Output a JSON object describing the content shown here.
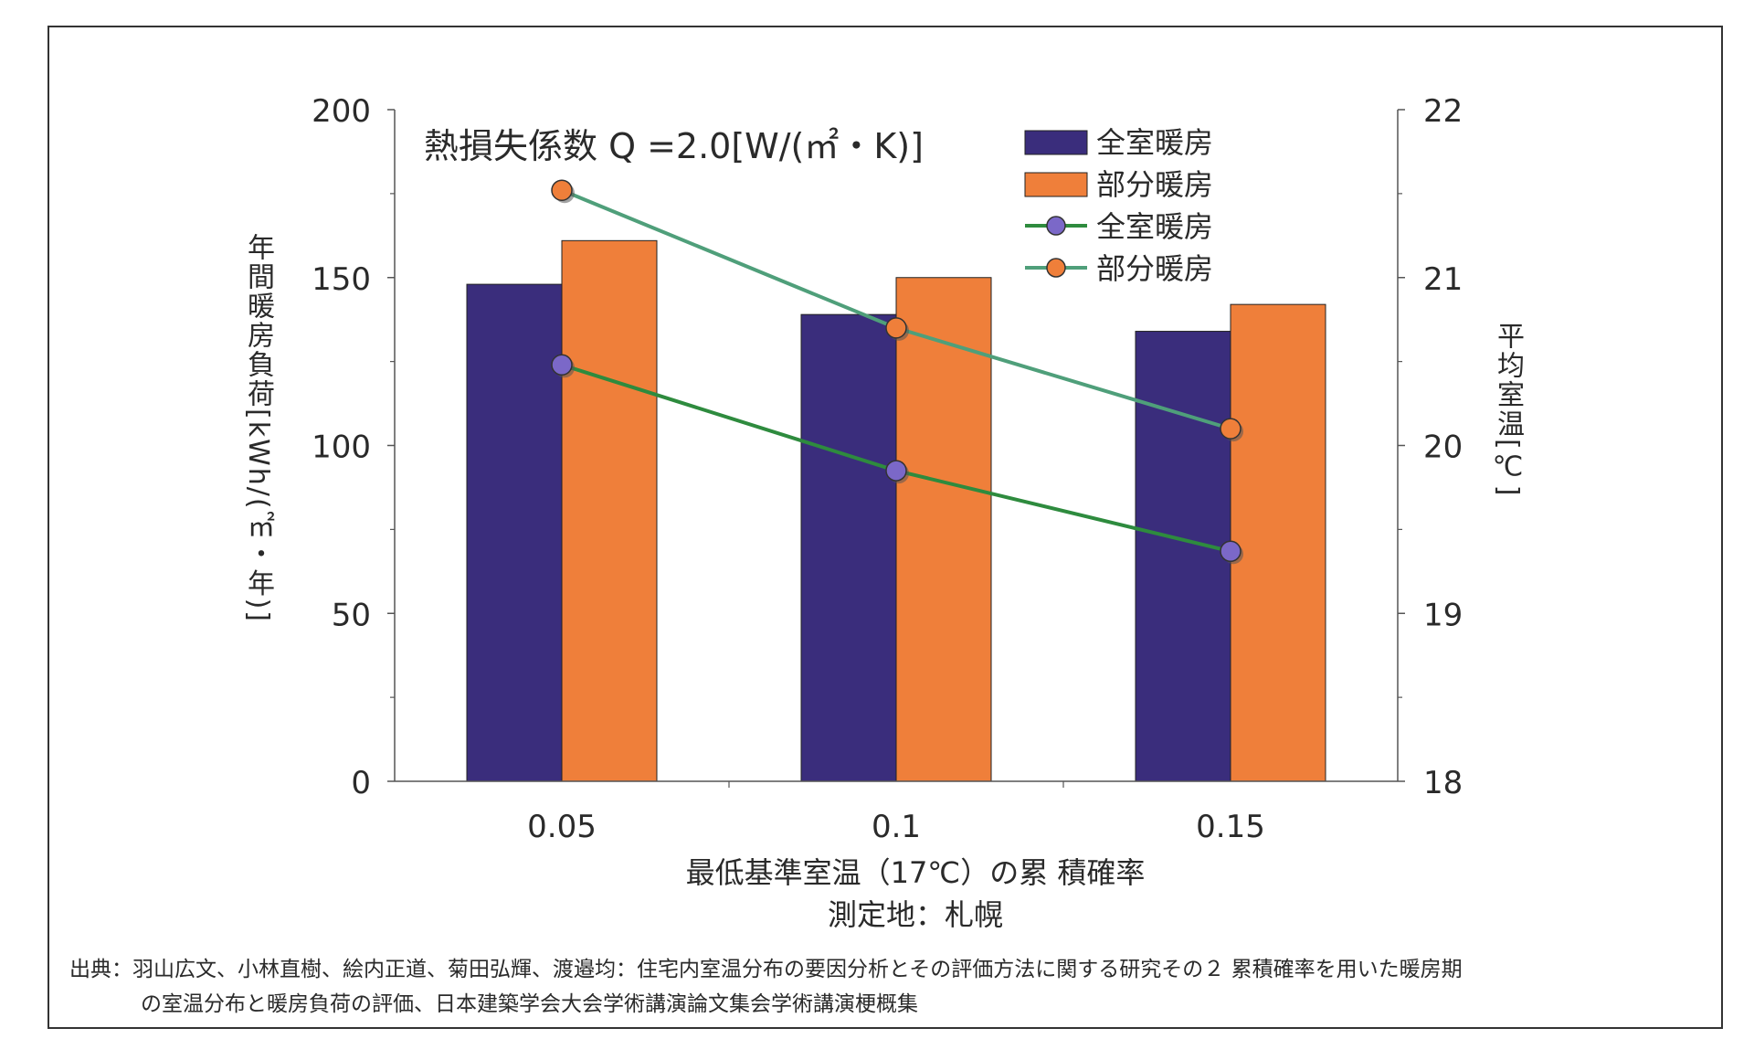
{
  "chart_data": {
    "type": "bar",
    "title": "熱損失係数 Q =2.0[W/(㎡・K)]",
    "categories": [
      "0.05",
      "0.1",
      "0.15"
    ],
    "xlabel": "最低基準室温（17℃）の累 積確率",
    "subtitle": "測定地：札幌",
    "ylabel_left": "年間暖房負荷[kWh/(㎡・年)]",
    "ylabel_right": "平均室温[℃]",
    "ylim_left": [
      0,
      200
    ],
    "ylim_right": [
      18,
      22
    ],
    "yticks_left": [
      "0",
      "50",
      "100",
      "150",
      "200"
    ],
    "yticks_right": [
      "18",
      "19",
      "20",
      "21",
      "22"
    ],
    "series": [
      {
        "name": "全室暖房",
        "kind": "bar",
        "axis": "left",
        "color": "#3a2d7c",
        "values": [
          148,
          139,
          134
        ]
      },
      {
        "name": "部分暖房",
        "kind": "bar",
        "axis": "left",
        "color": "#ef7f3a",
        "values": [
          161,
          150,
          142
        ]
      },
      {
        "name": "全室暖房",
        "kind": "line",
        "axis": "right",
        "color": "#2e8b3e",
        "marker_color": "#7b68c8",
        "values": [
          20.48,
          19.85,
          19.37
        ]
      },
      {
        "name": "部分暖房",
        "kind": "line",
        "axis": "right",
        "color": "#4f9f7a",
        "marker_color": "#ef7f3a",
        "values": [
          21.52,
          20.7,
          20.1
        ]
      }
    ],
    "legend_position": "top-right"
  },
  "source": {
    "line1": "出典：羽山広文、小林直樹、絵内正道、菊田弘輝、渡邉均：住宅内室温分布の要因分析とその評価方法に関する研究その２ 累積確率を用いた暖房期",
    "line2": "の室温分布と暖房負荷の評価、日本建築学会大会学術講演論文集会学術講演梗概集"
  }
}
